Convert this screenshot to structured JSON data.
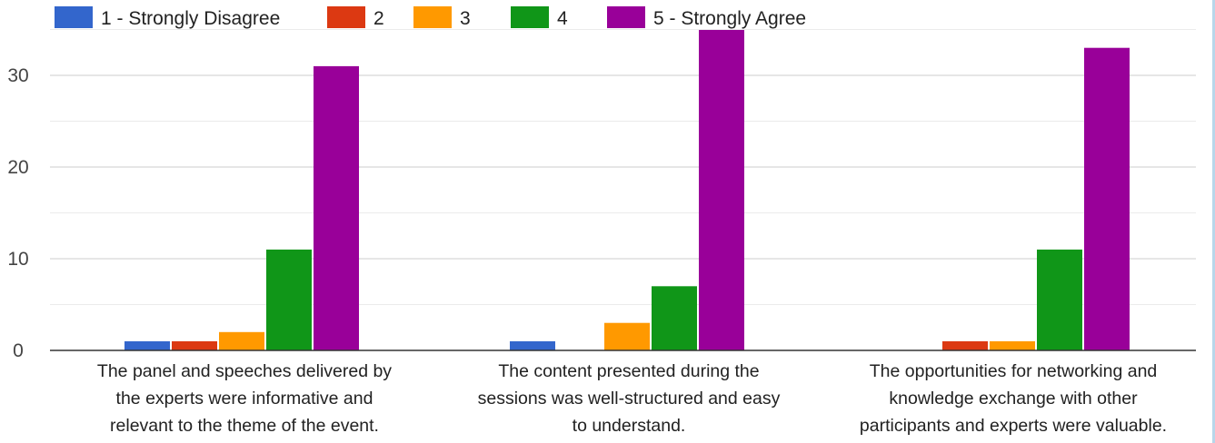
{
  "chart_data": {
    "type": "bar",
    "title": "",
    "xlabel": "",
    "ylabel": "",
    "ylim": [
      0,
      35
    ],
    "yticks": [
      0,
      10,
      20,
      30
    ],
    "grid": true,
    "legend_position": "top",
    "categories": [
      [
        "The panel and speeches delivered by",
        "the experts were informative and",
        "relevant to the theme of the event."
      ],
      [
        "The content presented during the",
        "sessions was well-structured and easy",
        "to understand."
      ],
      [
        "The opportunities for networking and",
        "knowledge exchange with other",
        "participants and experts were valuable."
      ]
    ],
    "series": [
      {
        "name": "1 - Strongly Disagree",
        "color": "#3366cc",
        "values": [
          1,
          1,
          0
        ]
      },
      {
        "name": "2",
        "color": "#dc3912",
        "values": [
          1,
          0,
          1
        ]
      },
      {
        "name": "3",
        "color": "#ff9900",
        "values": [
          2,
          3,
          1
        ]
      },
      {
        "name": "4",
        "color": "#109618",
        "values": [
          11,
          7,
          11
        ]
      },
      {
        "name": "5 - Strongly Agree",
        "color": "#990099",
        "values": [
          31,
          35,
          33
        ]
      }
    ]
  }
}
